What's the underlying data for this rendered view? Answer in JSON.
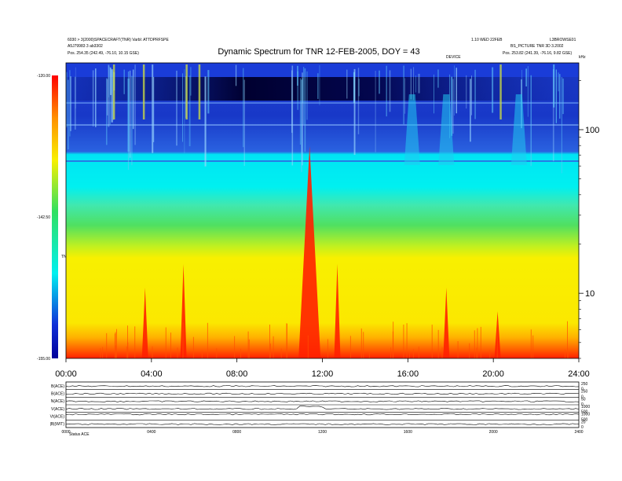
{
  "header": {
    "title": "Dynamic Spectrum for TNR 12-FEB-2005, DOY = 43",
    "left_line1": "6030 > 3(2000)SPACECRAFT(TNR) Varbl: ATTDPRFSPE",
    "left_line2": "A5J79983 3 ab3302",
    "left_pos": "Pos.  254.35 (242.49, -76.10, 10.15 GSE)",
    "right_line1": "1.10 WED 22FEB",
    "right_line2": "L3BROWSE01",
    "right_line3": "BS_PICTURE TNR 3D 3.2002",
    "right_pos": "Pos.  253.82 (241.39, -76.16, 9.82 GSE)",
    "center_small": "DEVICE",
    "corner_small": "kHz"
  },
  "colorbar": {
    "ticks": [
      "-120.00",
      "-142.50",
      "-155.00"
    ],
    "label": "TNR"
  },
  "chart_data": {
    "type": "heatmap",
    "title": "Dynamic Spectrum for TNR 12-FEB-2005, DOY = 43",
    "x_ticks": [
      "00:00",
      "04:00",
      "08:00",
      "12:00",
      "16:00",
      "20:00",
      "24:00"
    ],
    "x_range_hours": [
      0,
      24
    ],
    "y_scale": "log",
    "y_ticks": [
      "100",
      "10"
    ],
    "y_range_khz": [
      4,
      256
    ],
    "colorbar_range_db": [
      -155,
      -120
    ],
    "colors": {
      "low": "#0000a0",
      "blue": "#1030d8",
      "cyan": "#00f0f0",
      "green": "#30e060",
      "yellow": "#f8f000",
      "orange": "#ff9000",
      "red": "#ff2000"
    },
    "bursts_hour": [
      3.7,
      5.5,
      11.4,
      12.7,
      17.8,
      20.2
    ],
    "panels": {
      "labels": [
        "B(ACE)",
        "B(ACE)",
        "N(ACE)",
        "V(ACE)",
        "Vt(ACE)",
        "|B|(WIT)"
      ],
      "x_ticks": [
        "0000",
        "0400",
        "0800",
        "1200",
        "1600",
        "2000",
        "2400"
      ],
      "right_ticks": [
        [
          "250",
          "0"
        ],
        [
          "250",
          "0"
        ],
        [
          "50",
          "0"
        ],
        [
          "1000",
          "500"
        ],
        [
          "1000",
          "500"
        ],
        [
          "20",
          "0"
        ]
      ],
      "footer": "Status  ACE"
    }
  }
}
